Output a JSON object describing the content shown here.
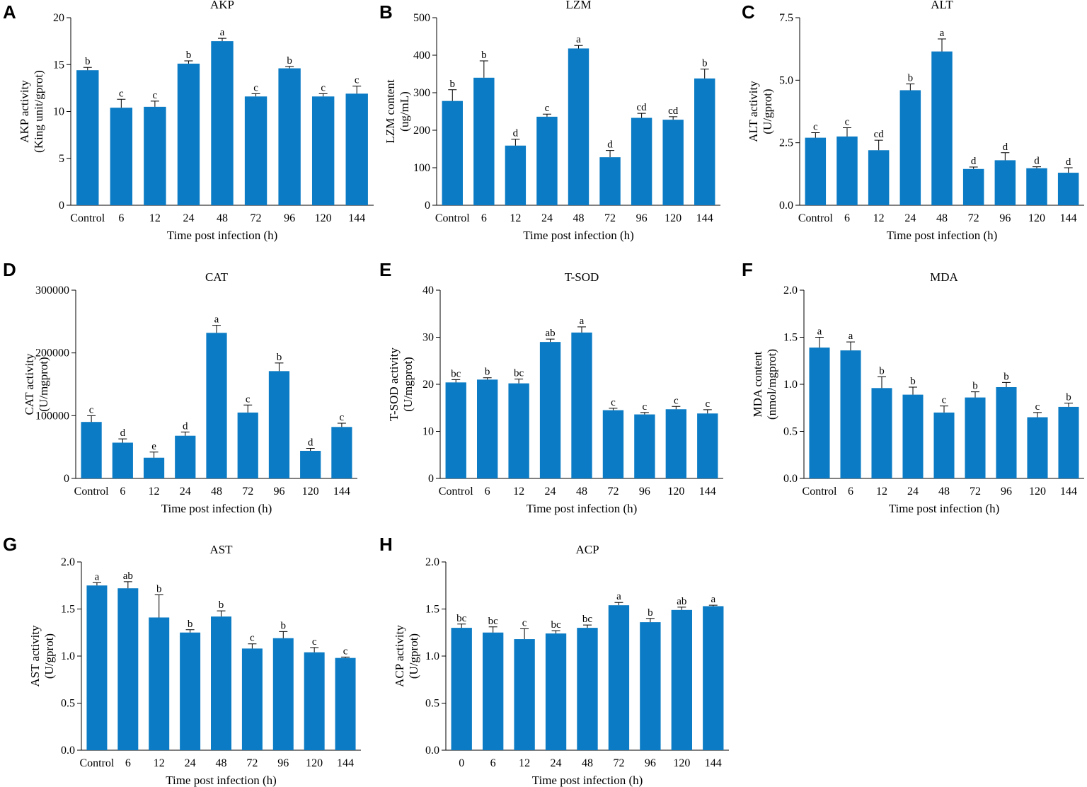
{
  "figure": {
    "bar_color": "#0a7bc4",
    "axis_color": "#000000"
  },
  "chart_data": [
    {
      "panel": "A",
      "type": "bar",
      "title": "AKP",
      "ylabel_lines": [
        "AKP activity",
        "(King unit/gprot)"
      ],
      "xlabel": "Time post infection (h)",
      "categories": [
        "Control",
        "6",
        "12",
        "24",
        "48",
        "72",
        "96",
        "120",
        "144"
      ],
      "values": [
        14.4,
        10.4,
        10.5,
        15.1,
        17.5,
        11.6,
        14.6,
        11.6,
        11.9
      ],
      "errors": [
        0.3,
        0.9,
        0.6,
        0.3,
        0.3,
        0.3,
        0.2,
        0.3,
        0.8
      ],
      "significance": [
        "b",
        "c",
        "c",
        "b",
        "a",
        "c",
        "b",
        "c",
        "c"
      ],
      "ylim": [
        0,
        20
      ],
      "yticks": [
        0,
        5,
        10,
        15,
        20
      ],
      "ytick_labels": [
        "0",
        "5",
        "10",
        "15",
        "20"
      ]
    },
    {
      "panel": "B",
      "type": "bar",
      "title": "LZM",
      "ylabel_lines": [
        "LZM content",
        "(ug/mL)"
      ],
      "xlabel": "Time post infection (h)",
      "categories": [
        "Control",
        "6",
        "12",
        "24",
        "48",
        "72",
        "96",
        "120",
        "144"
      ],
      "values": [
        278,
        340,
        159,
        236,
        418,
        128,
        233,
        228,
        338
      ],
      "errors": [
        30,
        45,
        17,
        7,
        8,
        18,
        12,
        8,
        25
      ],
      "significance": [
        "b",
        "b",
        "d",
        "c",
        "a",
        "d",
        "cd",
        "cd",
        "b"
      ],
      "ylim": [
        0,
        500
      ],
      "yticks": [
        0,
        100,
        200,
        300,
        400,
        500
      ],
      "ytick_labels": [
        "0",
        "100",
        "200",
        "300",
        "400",
        "500"
      ]
    },
    {
      "panel": "C",
      "type": "bar",
      "title": "ALT",
      "ylabel_lines": [
        "ALT activity",
        "(U/gprot)"
      ],
      "xlabel": "Time post infection (h)",
      "categories": [
        "Control",
        "6",
        "12",
        "24",
        "48",
        "72",
        "96",
        "120",
        "144"
      ],
      "values": [
        2.7,
        2.75,
        2.2,
        4.6,
        6.15,
        1.45,
        1.8,
        1.48,
        1.3
      ],
      "errors": [
        0.2,
        0.35,
        0.4,
        0.25,
        0.5,
        0.08,
        0.3,
        0.06,
        0.2
      ],
      "significance": [
        "c",
        "c",
        "cd",
        "b",
        "a",
        "d",
        "d",
        "d",
        "d"
      ],
      "ylim": [
        0,
        7.5
      ],
      "yticks": [
        0,
        2.5,
        5,
        7.5
      ],
      "ytick_labels": [
        "0.0",
        "2.5",
        "5.0",
        "7.5"
      ]
    },
    {
      "panel": "D",
      "type": "bar",
      "title": "CAT",
      "ylabel_lines": [
        "CAT activity",
        "(U/mgprot)"
      ],
      "xlabel": "Time post infection (h)",
      "categories": [
        "Control",
        "6",
        "12",
        "24",
        "48",
        "72",
        "96",
        "120",
        "144"
      ],
      "values": [
        90000,
        57000,
        33000,
        68000,
        232000,
        105000,
        171000,
        44000,
        82000
      ],
      "errors": [
        10000,
        6000,
        9000,
        6000,
        12000,
        12000,
        13000,
        4000,
        6000
      ],
      "significance": [
        "c",
        "d",
        "e",
        "d",
        "a",
        "c",
        "b",
        "d",
        "c"
      ],
      "ylim": [
        0,
        300000
      ],
      "yticks": [
        0,
        100000,
        200000,
        300000
      ],
      "ytick_labels": [
        "0",
        "100000",
        "200000",
        "300000"
      ]
    },
    {
      "panel": "E",
      "type": "bar",
      "title": "T-SOD",
      "ylabel_lines": [
        "T-SOD activity",
        "(U/mgprot)"
      ],
      "xlabel": "Time post infection (h)",
      "categories": [
        "Control",
        "6",
        "12",
        "24",
        "48",
        "72",
        "96",
        "120",
        "144"
      ],
      "values": [
        20.4,
        21.0,
        20.2,
        29.0,
        31.0,
        14.5,
        13.6,
        14.7,
        13.8
      ],
      "errors": [
        0.6,
        0.4,
        0.9,
        0.6,
        1.2,
        0.4,
        0.4,
        0.6,
        0.8
      ],
      "significance": [
        "bc",
        "b",
        "bc",
        "ab",
        "a",
        "c",
        "c",
        "c",
        "c"
      ],
      "ylim": [
        0,
        40
      ],
      "yticks": [
        0,
        10,
        20,
        30,
        40
      ],
      "ytick_labels": [
        "0",
        "10",
        "20",
        "30",
        "40"
      ]
    },
    {
      "panel": "F",
      "type": "bar",
      "title": "MDA",
      "ylabel_lines": [
        "MDA content",
        "(nmol/mgprot)"
      ],
      "xlabel": "Time post infection (h)",
      "categories": [
        "Control",
        "6",
        "12",
        "24",
        "48",
        "72",
        "96",
        "120",
        "144"
      ],
      "values": [
        1.39,
        1.36,
        0.96,
        0.89,
        0.7,
        0.86,
        0.97,
        0.65,
        0.76
      ],
      "errors": [
        0.11,
        0.09,
        0.12,
        0.08,
        0.07,
        0.06,
        0.05,
        0.05,
        0.04
      ],
      "significance": [
        "a",
        "a",
        "b",
        "b",
        "c",
        "b",
        "b",
        "c",
        "b"
      ],
      "ylim": [
        0,
        2.0
      ],
      "yticks": [
        0,
        0.5,
        1.0,
        1.5,
        2.0
      ],
      "ytick_labels": [
        "0.0",
        "0.5",
        "1.0",
        "1.5",
        "2.0"
      ]
    },
    {
      "panel": "G",
      "type": "bar",
      "title": "AST",
      "ylabel_lines": [
        "AST activity",
        "(U/gprot)"
      ],
      "xlabel": "Time post infection (h)",
      "categories": [
        "Control",
        "6",
        "12",
        "24",
        "48",
        "72",
        "96",
        "120",
        "144"
      ],
      "values": [
        1.75,
        1.72,
        1.41,
        1.25,
        1.42,
        1.08,
        1.19,
        1.04,
        0.98
      ],
      "errors": [
        0.03,
        0.07,
        0.24,
        0.03,
        0.06,
        0.05,
        0.07,
        0.05,
        0.01
      ],
      "significance": [
        "a",
        "ab",
        "b",
        "b",
        "b",
        "c",
        "b",
        "c",
        "c"
      ],
      "ylim": [
        0,
        2.0
      ],
      "yticks": [
        0,
        0.5,
        1.0,
        1.5,
        2.0
      ],
      "ytick_labels": [
        "0.0",
        "0.5",
        "1.0",
        "1.5",
        "2.0"
      ]
    },
    {
      "panel": "H",
      "type": "bar",
      "title": "ACP",
      "ylabel_lines": [
        "ACP activity",
        "(U/gprot)"
      ],
      "xlabel": "Time post infection (h)",
      "categories": [
        "0",
        "6",
        "12",
        "24",
        "48",
        "72",
        "96",
        "120",
        "144"
      ],
      "values": [
        1.3,
        1.25,
        1.18,
        1.24,
        1.3,
        1.54,
        1.36,
        1.49,
        1.53
      ],
      "errors": [
        0.04,
        0.06,
        0.11,
        0.03,
        0.03,
        0.03,
        0.04,
        0.03,
        0.01
      ],
      "significance": [
        "bc",
        "bc",
        "c",
        "bc",
        "bc",
        "a",
        "b",
        "ab",
        "a"
      ],
      "ylim": [
        0,
        2.0
      ],
      "yticks": [
        0,
        0.5,
        1.0,
        1.5,
        2.0
      ],
      "ytick_labels": [
        "0.0",
        "0.5",
        "1.0",
        "1.5",
        "2.0"
      ]
    }
  ]
}
